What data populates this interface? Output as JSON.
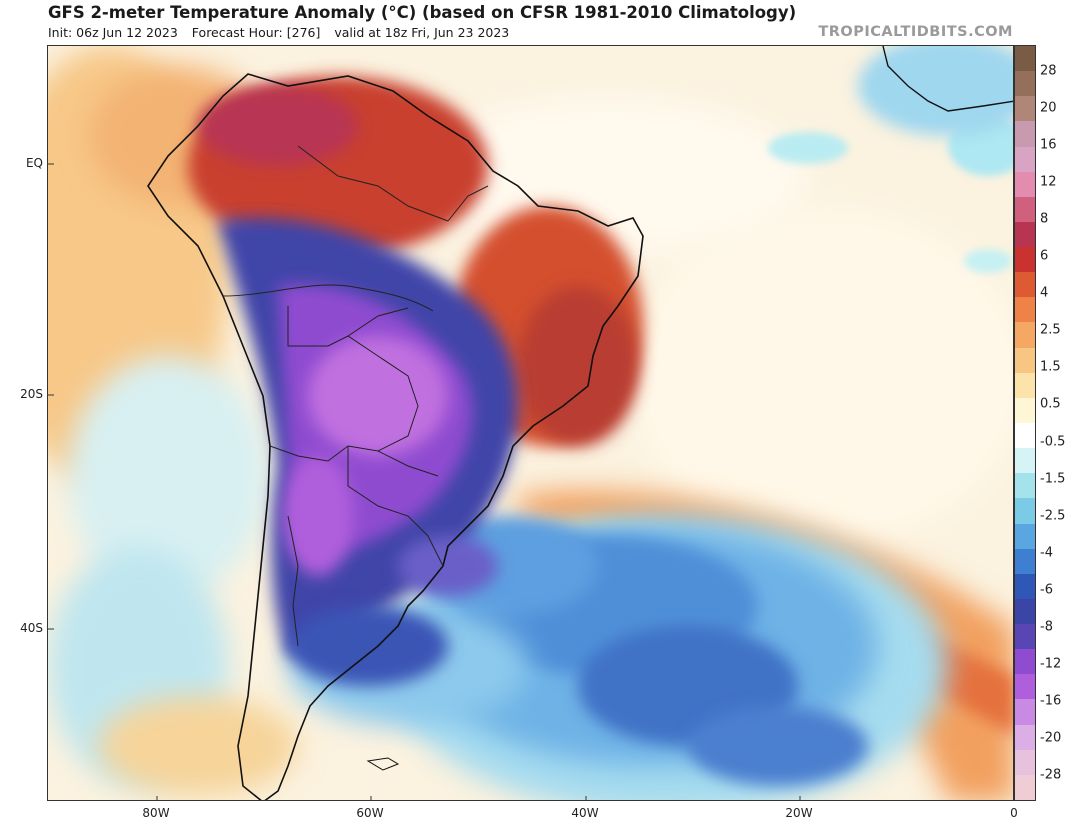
{
  "header": {
    "title": "GFS 2-meter Temperature Anomaly (°C) (based on CFSR 1981-2010 Climatology)",
    "init": "Init: 06z Jun 12 2023",
    "forecast_hour": "Forecast Hour: [276]",
    "valid": "valid at 18z Fri, Jun 23 2023",
    "brand": "TROPICALTIDBITS.COM"
  },
  "axes": {
    "lat_labels": [
      "EQ",
      "20S",
      "40S"
    ],
    "lon_labels": [
      "80W",
      "60W",
      "40W",
      "20W",
      "0"
    ]
  },
  "colorbar": {
    "tick_labels": [
      "28",
      "20",
      "16",
      "12",
      "8",
      "6",
      "4",
      "2.5",
      "1.5",
      "0.5",
      "-0.5",
      "-1.5",
      "-2.5",
      "-4",
      "-6",
      "-8",
      "-12",
      "-16",
      "-20",
      "-28"
    ],
    "colors": [
      "#7a5c46",
      "#94705c",
      "#b08678",
      "#c79ab0",
      "#d9a4c3",
      "#e48bb0",
      "#d1607f",
      "#b83552",
      "#c9322e",
      "#dd5a32",
      "#ee8247",
      "#f5a863",
      "#f8c683",
      "#fbe3a9",
      "#fff6d6",
      "#ffffff",
      "#d6f3f5",
      "#a4e3ec",
      "#7ccbe6",
      "#5aa6e0",
      "#3f7fd1",
      "#2f57b8",
      "#3b45a8",
      "#5a45b5",
      "#8f4cd0",
      "#b05fdc",
      "#c98ae3",
      "#dcaee6",
      "#e7c2dc",
      "#f0ccd4"
    ]
  },
  "colors": {
    "map_background": "#fbf2df",
    "coastline": "#111111"
  }
}
